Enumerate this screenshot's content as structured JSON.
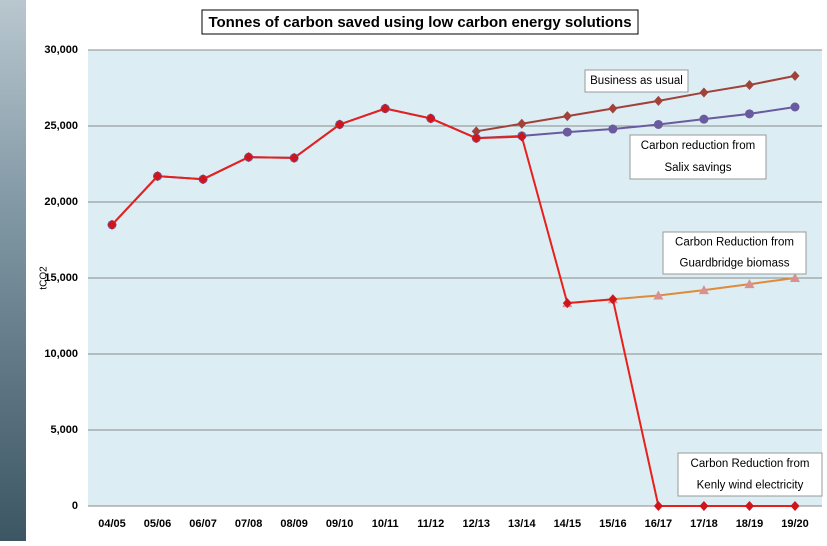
{
  "chart_data": {
    "type": "line",
    "title": "Tonnes of carbon saved using low carbon energy solutions",
    "y_label": "tCO2",
    "categories": [
      "04/05",
      "05/06",
      "06/07",
      "07/08",
      "08/09",
      "09/10",
      "10/11",
      "11/12",
      "12/13",
      "13/14",
      "14/15",
      "15/16",
      "16/17",
      "17/18",
      "18/19",
      "19/20"
    ],
    "ylim": [
      0,
      30000
    ],
    "yticks": [
      0,
      {
        "value": 5000,
        "label": "5,000"
      },
      {
        "value": 10000,
        "label": "10,000"
      },
      {
        "value": 15000,
        "label": "15,000"
      },
      {
        "value": 20000,
        "label": "20,000"
      },
      {
        "value": 25000,
        "label": "25,000"
      },
      {
        "value": 30000,
        "label": "30,000"
      }
    ],
    "grid": true,
    "series": [
      {
        "color": "#a0413a",
        "marker": "diamond",
        "marker_color": "#a0413a",
        "values": [
          null,
          null,
          null,
          null,
          null,
          null,
          null,
          null,
          24650,
          25150,
          25650,
          26150,
          26650,
          27200,
          27700,
          28300
        ]
      },
      {
        "color": "#6a5a9e",
        "marker": "circle",
        "marker_color": "#6a5a9e",
        "values": [
          18500,
          21700,
          21500,
          22950,
          22900,
          25100,
          26150,
          25500,
          24200,
          24350,
          24600,
          24800,
          25100,
          25450,
          25800,
          26250
        ]
      },
      {
        "color": "#e08a3c",
        "marker": "triangle",
        "marker_color": "#d99090",
        "values": [
          null,
          null,
          null,
          null,
          null,
          null,
          null,
          null,
          null,
          null,
          13350,
          13600,
          13850,
          14200,
          14600,
          15000
        ]
      },
      {
        "color": "#e8201c",
        "marker": "diamond",
        "marker_color": "#d0141c",
        "values": [
          18500,
          21700,
          21500,
          22950,
          22900,
          25100,
          26150,
          25500,
          24200,
          24300,
          13350,
          13600,
          0,
          0,
          0,
          0
        ]
      }
    ],
    "annotations": [
      {
        "lines": [
          "Business  as usual"
        ]
      },
      {
        "lines": [
          "Carbon reduction  from",
          "Salix savings"
        ]
      },
      {
        "lines": [
          "Carbon Reduction  from",
          "Guardbridge  biomass"
        ]
      },
      {
        "lines": [
          "Carbon Reduction from",
          "Kenly wind electricity"
        ]
      }
    ]
  }
}
